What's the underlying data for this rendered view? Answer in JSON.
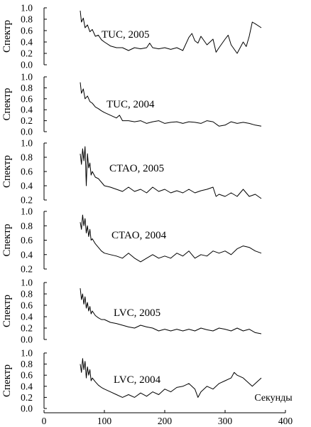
{
  "chart_data": {
    "type": "line",
    "layout": "six vertically stacked panels sharing one x-axis",
    "x_axis": {
      "label": "Секунды",
      "range": [
        0,
        400
      ],
      "ticks": [
        0,
        100,
        200,
        300,
        400
      ]
    },
    "panels": [
      {
        "annotation": "TUC, 2005",
        "ylabel": "Спектр",
        "ylim": [
          0,
          1
        ],
        "yticks": [
          "0.0",
          "0.2",
          "0.4",
          "0.6",
          "0.8",
          "1.0"
        ],
        "series": {
          "x": [
            60,
            62,
            65,
            68,
            72,
            76,
            80,
            85,
            90,
            95,
            100,
            110,
            120,
            130,
            140,
            150,
            160,
            170,
            175,
            180,
            190,
            200,
            210,
            220,
            230,
            240,
            245,
            250,
            255,
            260,
            270,
            280,
            285,
            290,
            300,
            305,
            310,
            320,
            330,
            335,
            340,
            345,
            350,
            360
          ],
          "y": [
            0.95,
            0.75,
            0.82,
            0.65,
            0.7,
            0.58,
            0.62,
            0.5,
            0.52,
            0.44,
            0.4,
            0.33,
            0.3,
            0.3,
            0.25,
            0.3,
            0.28,
            0.3,
            0.38,
            0.3,
            0.28,
            0.3,
            0.27,
            0.3,
            0.25,
            0.48,
            0.55,
            0.42,
            0.38,
            0.5,
            0.35,
            0.45,
            0.22,
            0.3,
            0.45,
            0.52,
            0.35,
            0.2,
            0.4,
            0.32,
            0.5,
            0.75,
            0.72,
            0.65
          ]
        }
      },
      {
        "annotation": "TUC, 2004",
        "ylabel": "Спектр",
        "ylim": [
          0,
          1
        ],
        "yticks": [
          "0.0",
          "0.2",
          "0.4",
          "0.6",
          "0.8",
          "1.0"
        ],
        "series": {
          "x": [
            60,
            62,
            65,
            68,
            72,
            76,
            80,
            85,
            90,
            95,
            100,
            110,
            120,
            125,
            130,
            140,
            150,
            160,
            170,
            180,
            190,
            200,
            210,
            220,
            230,
            240,
            250,
            260,
            270,
            280,
            290,
            300,
            310,
            320,
            330,
            340,
            350,
            360
          ],
          "y": [
            0.9,
            0.7,
            0.78,
            0.6,
            0.65,
            0.55,
            0.52,
            0.45,
            0.42,
            0.38,
            0.35,
            0.3,
            0.25,
            0.3,
            0.2,
            0.2,
            0.18,
            0.2,
            0.15,
            0.18,
            0.2,
            0.15,
            0.17,
            0.18,
            0.15,
            0.18,
            0.17,
            0.15,
            0.2,
            0.18,
            0.1,
            0.12,
            0.18,
            0.15,
            0.17,
            0.15,
            0.12,
            0.1
          ]
        }
      },
      {
        "annotation": "CTAO, 2005",
        "ylabel": "Спектр",
        "ylim": [
          0.2,
          1
        ],
        "yticks": [
          "0.2",
          "0.4",
          "0.6",
          "0.8",
          "1.0"
        ],
        "series": {
          "x": [
            60,
            62,
            64,
            66,
            68,
            70,
            72,
            74,
            76,
            78,
            80,
            85,
            90,
            95,
            100,
            110,
            120,
            130,
            140,
            150,
            160,
            170,
            180,
            190,
            200,
            210,
            220,
            230,
            240,
            250,
            260,
            270,
            280,
            285,
            290,
            300,
            310,
            320,
            330,
            340,
            350,
            360
          ],
          "y": [
            0.85,
            0.7,
            0.92,
            0.75,
            0.95,
            0.4,
            0.85,
            0.65,
            0.72,
            0.55,
            0.6,
            0.52,
            0.5,
            0.45,
            0.4,
            0.38,
            0.35,
            0.32,
            0.38,
            0.32,
            0.35,
            0.3,
            0.38,
            0.32,
            0.35,
            0.3,
            0.33,
            0.3,
            0.35,
            0.3,
            0.33,
            0.35,
            0.38,
            0.25,
            0.28,
            0.25,
            0.3,
            0.25,
            0.35,
            0.25,
            0.28,
            0.22
          ]
        }
      },
      {
        "annotation": "CTAO, 2004",
        "ylabel": "Спектр",
        "ylim": [
          0.2,
          1
        ],
        "yticks": [
          "0.2",
          "0.4",
          "0.6",
          "0.8",
          "1.0"
        ],
        "series": {
          "x": [
            60,
            62,
            64,
            66,
            68,
            70,
            72,
            74,
            76,
            78,
            80,
            85,
            90,
            95,
            100,
            110,
            120,
            130,
            140,
            150,
            160,
            170,
            180,
            190,
            200,
            210,
            220,
            230,
            240,
            250,
            260,
            270,
            280,
            290,
            300,
            310,
            320,
            330,
            340,
            350,
            360
          ],
          "y": [
            0.85,
            0.75,
            0.95,
            0.8,
            0.9,
            0.7,
            0.8,
            0.65,
            0.75,
            0.6,
            0.62,
            0.55,
            0.5,
            0.45,
            0.42,
            0.4,
            0.38,
            0.35,
            0.42,
            0.35,
            0.3,
            0.35,
            0.4,
            0.35,
            0.38,
            0.35,
            0.42,
            0.38,
            0.45,
            0.35,
            0.4,
            0.38,
            0.45,
            0.42,
            0.45,
            0.4,
            0.48,
            0.52,
            0.5,
            0.45,
            0.42
          ]
        }
      },
      {
        "annotation": "LVC, 2005",
        "ylabel": "Спектр",
        "ylim": [
          0,
          1
        ],
        "yticks": [
          "0.0",
          "0.2",
          "0.4",
          "0.6",
          "0.8",
          "1.0"
        ],
        "series": {
          "x": [
            60,
            62,
            64,
            66,
            68,
            70,
            72,
            74,
            76,
            78,
            80,
            85,
            90,
            95,
            100,
            110,
            120,
            130,
            140,
            150,
            160,
            170,
            180,
            190,
            200,
            210,
            220,
            230,
            240,
            250,
            260,
            270,
            280,
            290,
            300,
            310,
            320,
            330,
            340,
            350,
            360
          ],
          "y": [
            0.9,
            0.7,
            0.8,
            0.62,
            0.75,
            0.55,
            0.65,
            0.5,
            0.58,
            0.45,
            0.5,
            0.42,
            0.38,
            0.35,
            0.35,
            0.3,
            0.28,
            0.25,
            0.22,
            0.2,
            0.25,
            0.22,
            0.2,
            0.15,
            0.18,
            0.15,
            0.18,
            0.15,
            0.18,
            0.15,
            0.2,
            0.17,
            0.15,
            0.2,
            0.18,
            0.15,
            0.2,
            0.15,
            0.18,
            0.12,
            0.1
          ]
        }
      },
      {
        "annotation": "LVC, 2004",
        "ylabel": "Спектр",
        "ylim": [
          0,
          1
        ],
        "yticks": [
          "0.0",
          "0.2",
          "0.4",
          "0.6",
          "0.8",
          "1.0"
        ],
        "series": {
          "x": [
            60,
            62,
            64,
            66,
            68,
            70,
            72,
            74,
            76,
            78,
            80,
            85,
            90,
            95,
            100,
            110,
            120,
            130,
            140,
            150,
            160,
            170,
            180,
            190,
            200,
            210,
            220,
            230,
            240,
            250,
            255,
            260,
            270,
            280,
            290,
            300,
            310,
            315,
            320,
            330,
            340,
            345,
            350,
            360
          ],
          "y": [
            0.8,
            0.65,
            0.9,
            0.7,
            0.85,
            0.55,
            0.75,
            0.6,
            0.7,
            0.5,
            0.55,
            0.48,
            0.42,
            0.38,
            0.35,
            0.3,
            0.25,
            0.2,
            0.25,
            0.2,
            0.28,
            0.22,
            0.3,
            0.25,
            0.35,
            0.3,
            0.38,
            0.4,
            0.45,
            0.35,
            0.2,
            0.3,
            0.4,
            0.35,
            0.45,
            0.5,
            0.55,
            0.65,
            0.6,
            0.55,
            0.45,
            0.4,
            0.45,
            0.55
          ]
        }
      }
    ]
  }
}
